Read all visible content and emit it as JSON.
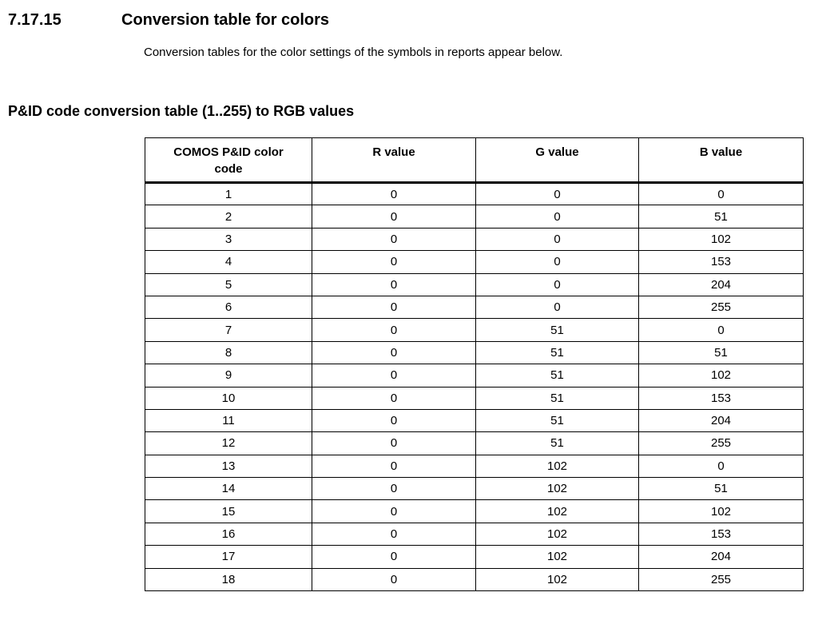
{
  "document": {
    "section_number": "7.17.15",
    "section_title": "Conversion table for colors",
    "intro": "Conversion tables for the color settings of the symbols in reports appear below.",
    "table_title": "P&ID code conversion table (1..255) to RGB values"
  },
  "chart_data": {
    "type": "table",
    "title": "P&ID code conversion table (1..255) to RGB values",
    "columns": [
      "COMOS P&ID color code",
      "R value",
      "G value",
      "B value"
    ],
    "rows": [
      [
        1,
        0,
        0,
        0
      ],
      [
        2,
        0,
        0,
        51
      ],
      [
        3,
        0,
        0,
        102
      ],
      [
        4,
        0,
        0,
        153
      ],
      [
        5,
        0,
        0,
        204
      ],
      [
        6,
        0,
        0,
        255
      ],
      [
        7,
        0,
        51,
        0
      ],
      [
        8,
        0,
        51,
        51
      ],
      [
        9,
        0,
        51,
        102
      ],
      [
        10,
        0,
        51,
        153
      ],
      [
        11,
        0,
        51,
        204
      ],
      [
        12,
        0,
        51,
        255
      ],
      [
        13,
        0,
        102,
        0
      ],
      [
        14,
        0,
        102,
        51
      ],
      [
        15,
        0,
        102,
        102
      ],
      [
        16,
        0,
        102,
        153
      ],
      [
        17,
        0,
        102,
        204
      ],
      [
        18,
        0,
        102,
        255
      ]
    ]
  },
  "colors": {
    "text": "#000000",
    "border": "#000000",
    "background": "#ffffff"
  }
}
